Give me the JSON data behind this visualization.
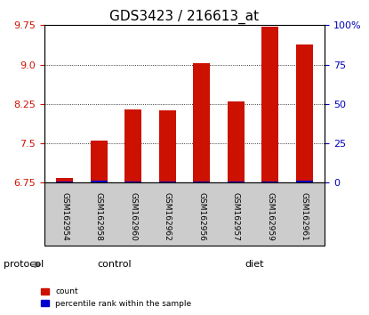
{
  "title": "GDS3423 / 216613_at",
  "samples": [
    "GSM162954",
    "GSM162958",
    "GSM162960",
    "GSM162962",
    "GSM162956",
    "GSM162957",
    "GSM162959",
    "GSM162961"
  ],
  "red_values": [
    6.84,
    7.55,
    8.15,
    8.12,
    9.03,
    8.29,
    9.72,
    9.38
  ],
  "blue_values": [
    0.02,
    0.04,
    0.02,
    0.02,
    0.02,
    0.03,
    0.03,
    0.04
  ],
  "ymin": 6.75,
  "ymax": 9.75,
  "yticks": [
    6.75,
    7.5,
    8.25,
    9.0,
    9.75
  ],
  "right_yticks": [
    0,
    25,
    50,
    75,
    100
  ],
  "right_ylabels": [
    "0",
    "25",
    "50",
    "75",
    "100%"
  ],
  "group_labels": [
    "control",
    "diet"
  ],
  "group_sizes": [
    4,
    4
  ],
  "group_colors": [
    "#aaffaa",
    "#44cc44"
  ],
  "bar_color_red": "#cc1100",
  "bar_color_blue": "#0000cc",
  "bar_width": 0.5,
  "background_plot": "#ffffff",
  "sample_box_color": "#cccccc",
  "protocol_label": "protocol",
  "legend_items": [
    "count",
    "percentile rank within the sample"
  ],
  "title_fontsize": 11,
  "tick_fontsize": 8,
  "label_fontsize": 8
}
